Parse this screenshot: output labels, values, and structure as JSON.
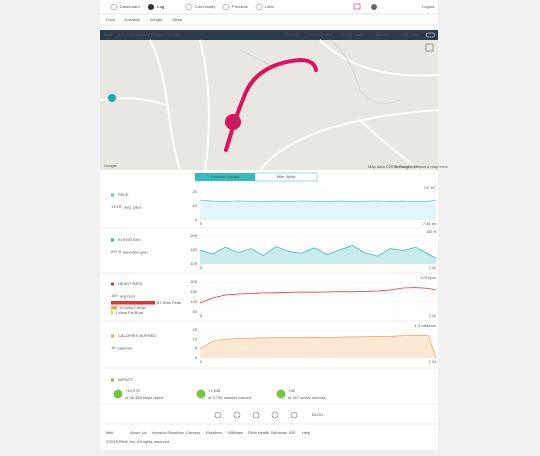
{
  "nav": {
    "items": [
      "Dashboard",
      "Log",
      "Community",
      "Premium",
      "Labs"
    ],
    "logout": "Logout"
  },
  "subnav": [
    "Food",
    "Activities",
    "Weight",
    "Sleep"
  ],
  "activity": {
    "type": "RUN",
    "date": "4:30 PM, Monday October 26, 2015",
    "stats": [
      "7.44 mi",
      "01:40:07 time",
      "13'28\" pace",
      "169 bpm",
      "1638 cals"
    ]
  },
  "map": {
    "marker_value": "7.44",
    "marker_unit": "MILES",
    "credit": "Map data ©2015 Google",
    "terms": "Terms of Use",
    "report": "Report a map error",
    "logo": "Google"
  },
  "tabs": [
    "Exercise Details",
    "Mile Splits"
  ],
  "sections": [
    {
      "title": "PACE",
      "value": "13'28\"",
      "unit": "avg. pace"
    },
    {
      "title": "ELEVATION",
      "value": "297 ft",
      "unit": "elevation gain"
    },
    {
      "title": "HEART RATE",
      "value": "169",
      "unit": "avg bpm"
    },
    {
      "title": "CALORIES BURNED",
      "value": "16",
      "unit": "cals/min"
    }
  ],
  "heart_zones": [
    "87 Mins Peak",
    "12 Mins Cardio",
    "1 Mins Fat Burn"
  ],
  "impact": {
    "title": "IMPACT",
    "items": [
      {
        "value": "+15,975",
        "label": "of 26,358 steps taken"
      },
      {
        "value": "+1,638",
        "label": "of 3,700 calories burned"
      },
      {
        "value": "+98",
        "label": "of 167 active minutes"
      }
    ]
  },
  "social": "BLOG",
  "footer": {
    "logo": "fitbit",
    "links": [
      "About Us",
      "Investor Relations",
      "Careers",
      "Retailers",
      "Affiliates",
      "Fitbit Health Solutions",
      "API",
      "Help"
    ],
    "copyright": "©2015 Fitbit, Inc. All rights reserved."
  },
  "chart_data": [
    {
      "type": "area",
      "annotation": "14' 10\"",
      "color": "#5bc4e0",
      "fill": "#e3f4fa",
      "x": [
        0,
        0.4,
        0.8,
        1.2,
        1.6,
        2,
        2.4,
        2.8,
        3.2,
        3.6,
        4,
        4.4,
        4.8,
        5.2,
        5.6,
        6,
        6.4,
        6.8,
        7.2,
        7.44
      ],
      "values": [
        14.2,
        13.5,
        13.3,
        13.6,
        13.4,
        13.2,
        13.5,
        13.3,
        13.6,
        13.4,
        13.2,
        13.5,
        13.3,
        13.4,
        13.6,
        13.3,
        13.5,
        13.2,
        13.4,
        14.1
      ],
      "xlim": [
        0,
        7.44
      ],
      "xticks": [
        0,
        {
          "value": 7.44,
          "label": "7.44 mi"
        }
      ],
      "ylim": [
        0,
        20
      ],
      "yticks": [
        0,
        10,
        20
      ],
      "grid": true
    },
    {
      "type": "area",
      "annotation": "166 ft",
      "color": "#27b3b8",
      "fill": "#c9ecec",
      "x": [
        0,
        0.4,
        0.8,
        1.2,
        1.6,
        2,
        2.4,
        2.8,
        3.2,
        3.6,
        4,
        4.4,
        4.8,
        5.2,
        5.6,
        6,
        6.4,
        6.8,
        7.2,
        7.44
      ],
      "values": [
        150,
        135,
        160,
        140,
        155,
        130,
        162,
        145,
        138,
        158,
        133,
        150,
        166,
        140,
        128,
        155,
        148,
        160,
        135,
        120
      ],
      "xlim": [
        0,
        7.44
      ],
      "xticks": [
        0,
        {
          "value": 7.44,
          "label": "7.44"
        }
      ],
      "ylim": [
        100,
        200
      ],
      "yticks": [
        100,
        150,
        200
      ],
      "grid": true
    },
    {
      "type": "line",
      "annotation": "179 bpm",
      "color": "#e8322c",
      "x": [
        0,
        0.4,
        0.8,
        1.2,
        1.6,
        2,
        2.4,
        2.8,
        3.2,
        3.6,
        4,
        4.4,
        4.8,
        5.2,
        5.6,
        6,
        6.4,
        6.8,
        7.2,
        7.44
      ],
      "values": [
        95,
        120,
        135,
        140,
        142,
        145,
        146,
        148,
        150,
        149,
        150,
        152,
        151,
        153,
        155,
        160,
        170,
        172,
        168,
        160
      ],
      "xlim": [
        0,
        7.44
      ],
      "xticks": [
        0,
        {
          "value": 7.44,
          "label": "7.44"
        }
      ],
      "ylim": [
        50,
        200
      ],
      "yticks": [
        50,
        100,
        150,
        200
      ],
      "grid": true
    },
    {
      "type": "area",
      "annotation": "1.3 cals/min",
      "color": "#f5a15a",
      "fill": "#fde8d6",
      "x": [
        0,
        0.4,
        0.8,
        1.2,
        1.6,
        2,
        2.4,
        2.8,
        3.2,
        3.6,
        4,
        4.4,
        4.8,
        5.2,
        5.6,
        6,
        6.4,
        6.8,
        7.2,
        7.44
      ],
      "values": [
        5,
        9,
        10,
        10.5,
        10.6,
        10.8,
        11,
        10.9,
        11,
        11.1,
        11,
        11.2,
        11.3,
        11.4,
        11.5,
        11.6,
        12,
        12.2,
        12.1,
        0
      ],
      "xlim": [
        0,
        7.44
      ],
      "xticks": [
        0,
        {
          "value": 7.44,
          "label": "7.44"
        }
      ],
      "ylim": [
        0,
        15
      ],
      "yticks": [
        0,
        5,
        10,
        15
      ],
      "grid": true
    }
  ]
}
